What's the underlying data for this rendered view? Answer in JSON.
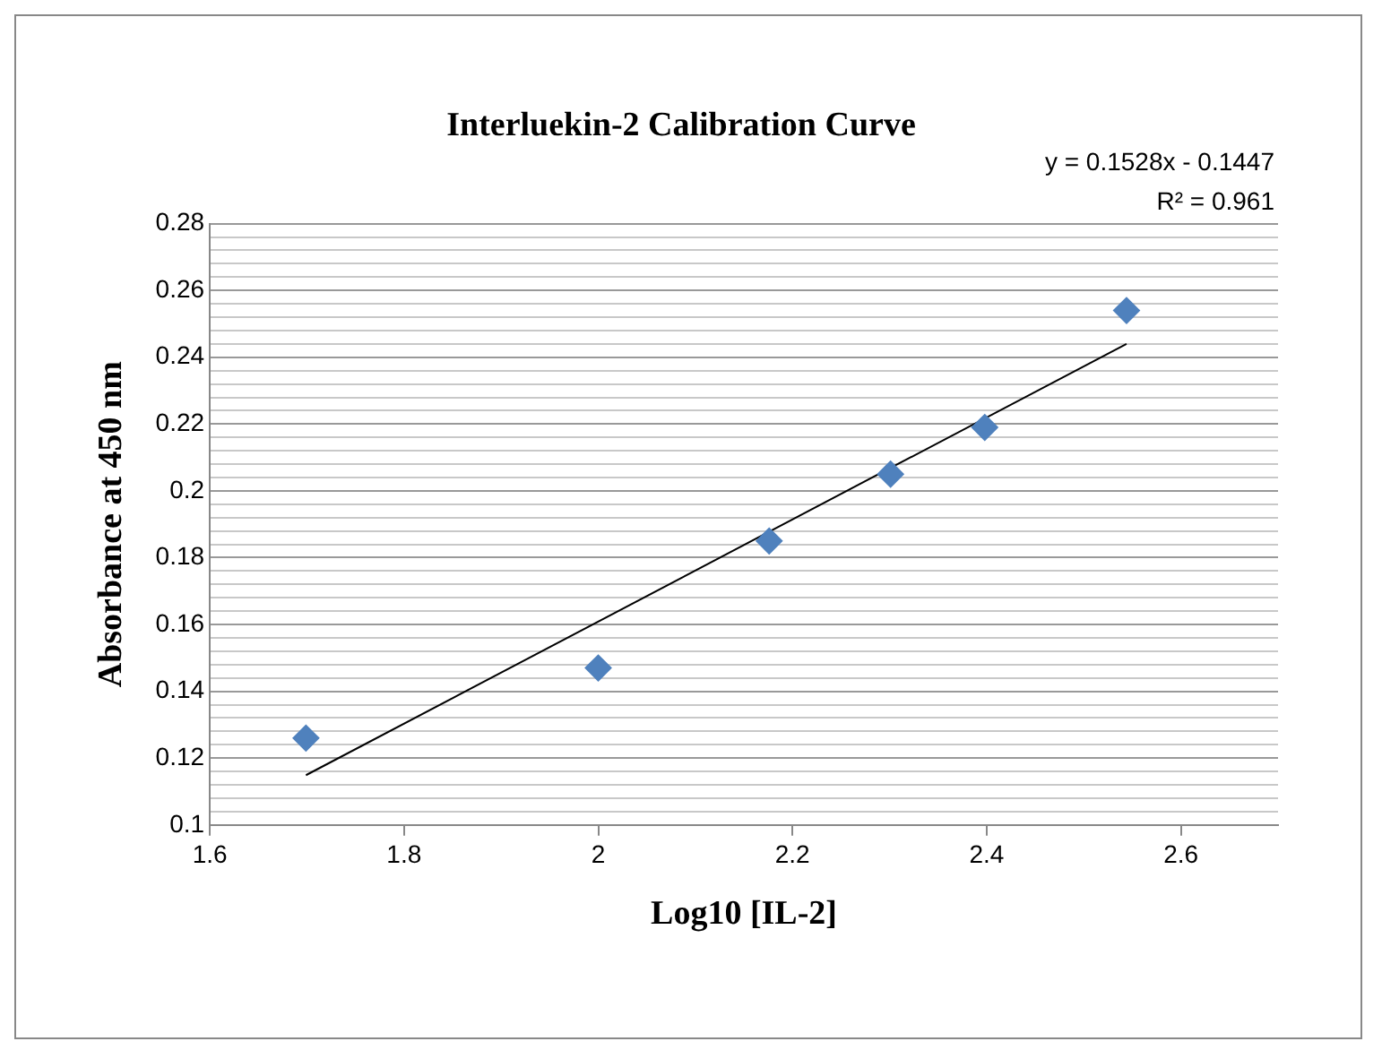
{
  "chart_data": {
    "type": "scatter",
    "title": "Interluekin-2 Calibration Curve",
    "xlabel": "Log10 [IL-2]",
    "ylabel": "Absorbance at 450 nm",
    "annotations": [
      "y = 0.1528x - 0.1447",
      "R² = 0.961"
    ],
    "series": [
      {
        "color": "#4f81bd",
        "marker": "diamond",
        "x": [
          1.699,
          2.0,
          2.176,
          2.301,
          2.398,
          2.544
        ],
        "values": [
          0.126,
          0.147,
          0.185,
          0.205,
          0.219,
          0.254
        ]
      },
      {
        "type": "line",
        "color": "#000000",
        "marker": "none",
        "x": [
          1.699,
          2.544
        ],
        "values": [
          0.1149,
          0.244
        ]
      }
    ],
    "xlim": [
      1.6,
      2.7
    ],
    "xticks": [
      1.6,
      1.8,
      2,
      2.2,
      2.4,
      2.6
    ],
    "ylim": [
      0.1,
      0.28
    ],
    "yticks": [
      0.1,
      {
        "value": 0.104,
        "label": null
      },
      {
        "value": 0.108,
        "label": null
      },
      {
        "value": 0.112,
        "label": null
      },
      {
        "value": 0.116,
        "label": null
      },
      0.12,
      {
        "value": 0.124,
        "label": null
      },
      {
        "value": 0.128,
        "label": null
      },
      {
        "value": 0.132,
        "label": null
      },
      {
        "value": 0.136,
        "label": null
      },
      0.14,
      {
        "value": 0.144,
        "label": null
      },
      {
        "value": 0.148,
        "label": null
      },
      {
        "value": 0.152,
        "label": null
      },
      {
        "value": 0.156,
        "label": null
      },
      0.16,
      {
        "value": 0.164,
        "label": null
      },
      {
        "value": 0.168,
        "label": null
      },
      {
        "value": 0.172,
        "label": null
      },
      {
        "value": 0.176,
        "label": null
      },
      0.18,
      {
        "value": 0.184,
        "label": null
      },
      {
        "value": 0.188,
        "label": null
      },
      {
        "value": 0.192,
        "label": null
      },
      {
        "value": 0.196,
        "label": null
      },
      0.2,
      {
        "value": 0.204,
        "label": null
      },
      {
        "value": 0.208,
        "label": null
      },
      {
        "value": 0.212,
        "label": null
      },
      {
        "value": 0.216,
        "label": null
      },
      0.22,
      {
        "value": 0.224,
        "label": null
      },
      {
        "value": 0.228,
        "label": null
      },
      {
        "value": 0.232,
        "label": null
      },
      {
        "value": 0.236,
        "label": null
      },
      0.24,
      {
        "value": 0.244,
        "label": null
      },
      {
        "value": 0.248,
        "label": null
      },
      {
        "value": 0.252,
        "label": null
      },
      {
        "value": 0.256,
        "label": null
      },
      0.26,
      {
        "value": 0.264,
        "label": null
      },
      {
        "value": 0.268,
        "label": null
      },
      {
        "value": 0.272,
        "label": null
      },
      {
        "value": 0.276,
        "label": null
      },
      0.28
    ],
    "grid": "y",
    "legend": false
  }
}
